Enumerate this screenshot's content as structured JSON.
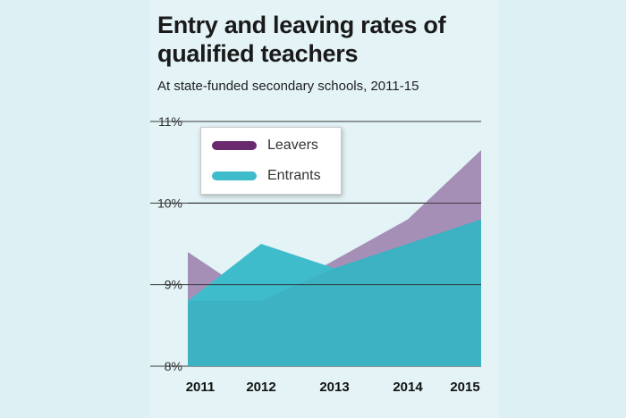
{
  "chart_data": {
    "type": "area",
    "title": "Entry and leaving rates of qualified teachers",
    "subtitle": "At state-funded secondary schools, 2011-15",
    "categories": [
      "2011",
      "2012",
      "2013",
      "2014",
      "2015"
    ],
    "series": [
      {
        "name": "Leavers",
        "values": [
          9.4,
          8.8,
          9.3,
          9.8,
          10.65
        ],
        "color": "#a68fb7",
        "legend_color": "#6a2a6e"
      },
      {
        "name": "Entrants",
        "values": [
          8.8,
          9.5,
          9.2,
          9.5,
          9.8
        ],
        "color": "#3fbccb",
        "legend_color": "#3fbccb"
      }
    ],
    "overlap_color": "#3db2c2",
    "ylim": [
      8,
      11
    ],
    "yticks": [
      "8%",
      "9%",
      "10%",
      "11%"
    ],
    "xlabel": "",
    "ylabel": "",
    "legend_position": "top-left"
  }
}
